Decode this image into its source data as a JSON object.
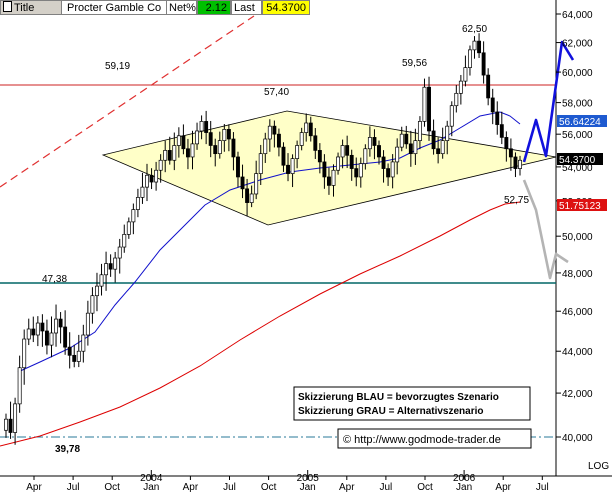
{
  "header": {
    "title_label": "Title",
    "instrument": "Procter   Gamble Co",
    "netpct_label": "Net%",
    "netpct_value": "2.12",
    "last_label": "Last",
    "last_value": "54.3700"
  },
  "chart_data": {
    "type": "candlestick",
    "x_axis": {
      "month_ticks": [
        "Apr",
        "Jul",
        "Oct",
        "Jan",
        "Apr",
        "Jul",
        "Oct",
        "Jan",
        "Apr",
        "Jul",
        "Oct",
        "Jan",
        "Apr",
        "Jul"
      ],
      "year_labels": [
        "2004",
        "2005",
        "2006"
      ]
    },
    "y_axis": {
      "scale": "log",
      "scale_label": "LOG",
      "ylim": [
        39.0,
        65.5
      ],
      "ticks": [
        "40,000",
        "42,000",
        "44,000",
        "46,000",
        "48,000",
        "50,000",
        "52,000",
        "54,000",
        "56,000",
        "58,000",
        "60,000",
        "62,000",
        "64,000"
      ]
    },
    "price_series_closes": [
      40.8,
      40.2,
      41.5,
      43.2,
      44.6,
      45.1,
      44.8,
      45.4,
      45.0,
      44.3,
      44.9,
      45.6,
      45.2,
      44.2,
      43.8,
      43.5,
      44.0,
      44.8,
      45.9,
      46.8,
      47.3,
      47.9,
      48.5,
      48.2,
      48.8,
      49.4,
      50.1,
      50.8,
      51.5,
      52.2,
      52.8,
      53.5,
      53.1,
      53.8,
      54.4,
      55.0,
      54.4,
      55.3,
      55.9,
      55.1,
      54.6,
      55.4,
      56.2,
      56.8,
      56.1,
      55.3,
      54.8,
      55.6,
      56.3,
      55.7,
      54.6,
      53.4,
      52.7,
      51.9,
      52.4,
      53.6,
      54.8,
      55.7,
      56.5,
      56.0,
      55.2,
      54.1,
      53.6,
      54.5,
      55.3,
      56.1,
      56.7,
      55.9,
      55.0,
      54.3,
      53.4,
      52.9,
      53.8,
      54.6,
      55.3,
      54.7,
      53.9,
      53.4,
      54.2,
      55.1,
      55.8,
      55.3,
      54.6,
      53.9,
      53.4,
      54.3,
      55.2,
      56.0,
      55.4,
      54.8,
      55.6,
      56.8,
      59.0,
      56.2,
      55.1,
      54.8,
      55.6,
      56.5,
      57.8,
      58.6,
      59.4,
      60.3,
      61.5,
      62.1,
      61.3,
      59.8,
      58.3,
      57.4,
      56.6,
      55.8,
      55.1,
      54.6,
      53.9,
      54.4
    ],
    "series": [
      {
        "name": "",
        "color": "#1111cc"
      },
      {
        "name": "",
        "color": "#dd0000"
      }
    ],
    "annotations": {
      "labels": [
        "59,19",
        "57,40",
        "59,56",
        "62,50",
        "52,75",
        "47,38",
        "39,78"
      ],
      "box_lines": [
        "Skizzierung BLAU = bevorzugtes Szenario",
        "Skizzierung GRAU = Alternativszenario"
      ],
      "copyright": "© http://www.godmode-trader.de"
    },
    "price_tags": [
      {
        "value": "56.64224",
        "color": "#1e5ad0"
      },
      {
        "value": "54.3700",
        "color": "#000000"
      },
      {
        "value": "51.75123",
        "color": "#dd1111"
      }
    ],
    "horizontal_levels": [
      {
        "value": 59.19,
        "color": "#cc2222"
      },
      {
        "value": 47.38,
        "color": "#006666"
      },
      {
        "value": 39.78,
        "color": "#2a7a9a"
      }
    ],
    "triangle": [
      {
        "date": "2004-09",
        "price": 54.7
      },
      {
        "date": "2005-01",
        "price": 57.4
      },
      {
        "date": "2006-07",
        "price": 54.7
      },
      {
        "date": "2004-10",
        "price": 50.6
      }
    ],
    "blue_scenario": [
      54.4,
      56.5,
      54.9,
      61.8,
      60.7
    ],
    "grey_scenario": [
      53.4,
      51.3,
      47.1,
      48.2,
      47.2
    ]
  }
}
